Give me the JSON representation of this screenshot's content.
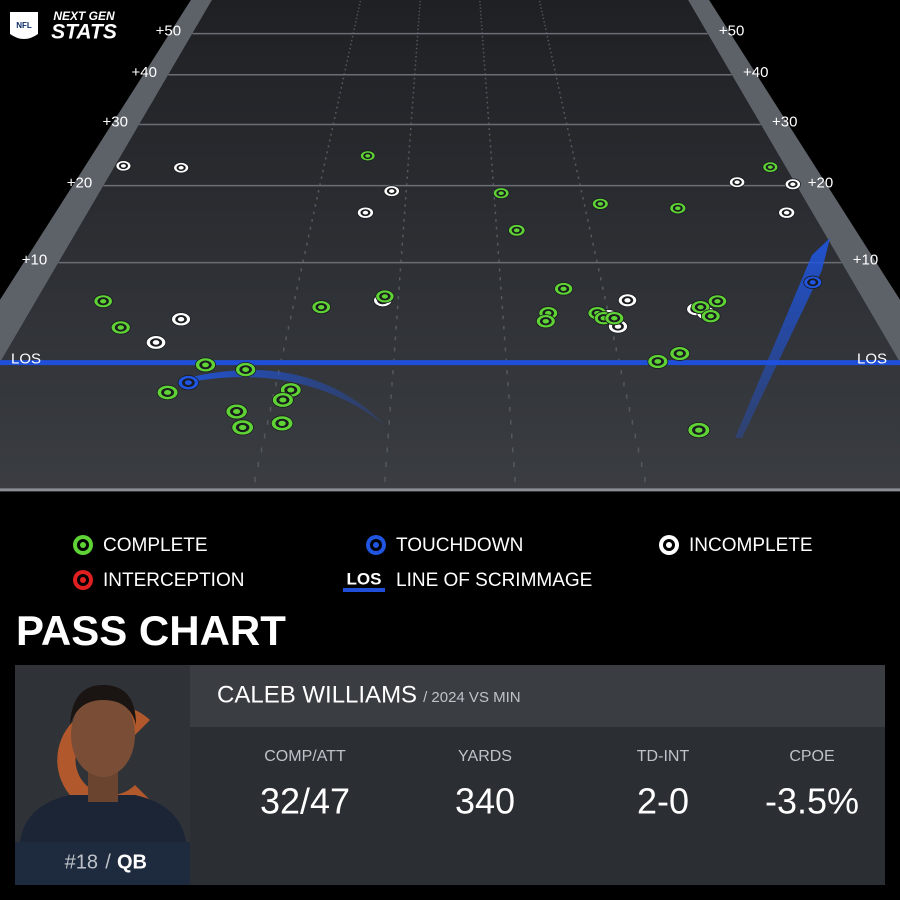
{
  "header": {
    "logo": "NFL",
    "brand_top": "NEXT GEN",
    "brand_bottom": "STATS"
  },
  "chart_data": {
    "type": "scatter",
    "xlim": [
      -24,
      24
    ],
    "ylim": [
      -9.5,
      60
    ],
    "yticks": [
      {
        "value": 0,
        "label": "LOS"
      },
      {
        "value": 10,
        "label": "+10"
      },
      {
        "value": 20,
        "label": "+20"
      },
      {
        "value": 30,
        "label": "+30"
      },
      {
        "value": 40,
        "label": "+40"
      },
      {
        "value": 50,
        "label": "+50"
      }
    ],
    "series": [
      {
        "name": "COMPLETE",
        "color": "#5fd335",
        "x": [
          -6.0,
          22.9,
          3.5,
          10.1,
          15.2,
          4.3,
          6.7,
          -20.1,
          -3.8,
          -7.4,
          -18.4,
          5.6,
          5.4,
          8.4,
          8.7,
          9.3,
          14.4,
          15.5,
          14.8,
          11.1,
          12.4,
          -13.0,
          -10.8,
          -14.5,
          -8.2,
          -8.5,
          -10.7,
          -10.2,
          -8.3,
          12.2
        ],
        "values": [
          24.6,
          22.8,
          18.9,
          17.4,
          16.8,
          13.9,
          7.1,
          5.8,
          6.3,
          5.2,
          3.2,
          4.6,
          3.8,
          4.6,
          4.1,
          4.1,
          5.2,
          5.8,
          4.3,
          0.1,
          0.8,
          -0.2,
          -0.6,
          -2.5,
          -2.3,
          -3.1,
          -4.0,
          -5.2,
          -4.9,
          -5.4
        ]
      },
      {
        "name": "TOUCHDOWN",
        "color": "#1f55e0",
        "x": [
          -13.6,
          21.6
        ],
        "values": [
          -1.7,
          7.8
        ]
      },
      {
        "name": "INCOMPLETE",
        "color": "#ffffff",
        "x": [
          -23.4,
          -19.2,
          -4.0,
          -5.6,
          20.0,
          23.8,
          22.3,
          10.3,
          14.1,
          9.4,
          -3.9,
          -15.2,
          -16.1,
          9.0,
          14.6
        ],
        "values": [
          23.0,
          22.7,
          19.2,
          16.2,
          20.5,
          20.2,
          16.2,
          5.9,
          5.0,
          3.3,
          5.9,
          4.0,
          1.8,
          4.3,
          4.6
        ]
      },
      {
        "name": "INTERCEPTION",
        "color": "#e02020",
        "x": [],
        "values": []
      }
    ],
    "los": {
      "label": "LOS",
      "name": "LINE OF SCRIMMAGE",
      "color": "#1f4fd8"
    }
  },
  "title": "PASS CHART",
  "card": {
    "player": "CALEB WILLIAMS",
    "context": "/ 2024 VS MIN",
    "number": "#18",
    "separator": "/",
    "position": "QB",
    "stats": [
      {
        "label": "COMP/ATT",
        "value": "32/47"
      },
      {
        "label": "YARDS",
        "value": "340"
      },
      {
        "label": "TD-INT",
        "value": "2-0"
      },
      {
        "label": "CPOE",
        "value": "-3.5%"
      }
    ]
  }
}
